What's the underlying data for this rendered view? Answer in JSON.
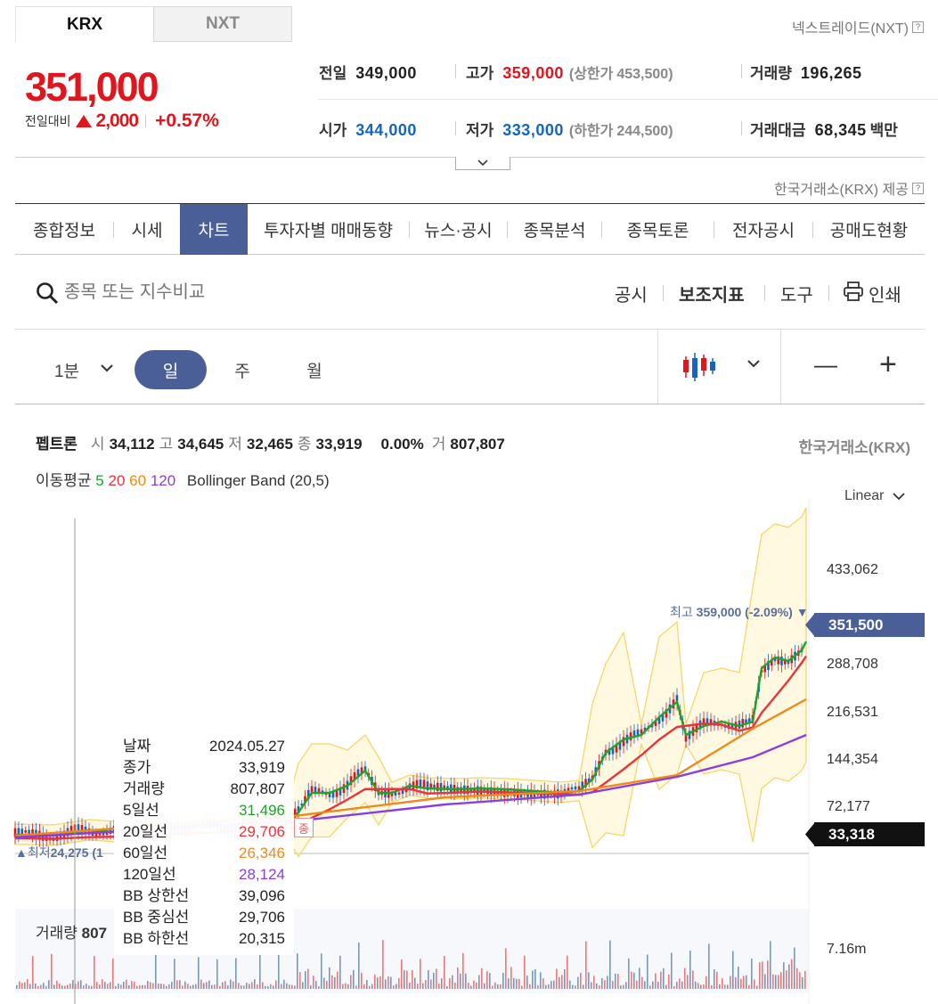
{
  "market_tabs": [
    "KRX",
    "NXT"
  ],
  "nxt_link": "넥스트레이드(NXT)",
  "krx_link": "한국거래소(KRX) 제공",
  "q_icon": "?",
  "price": "351,000",
  "change_label": "전일대비",
  "change_value": "2,000",
  "change_pct": "+0.57%",
  "stats": {
    "prev_k": "전일",
    "prev_v": "349,000",
    "high_k": "고가",
    "high_v": "359,000",
    "upper_k": "(상한가",
    "upper_v": "453,500)",
    "vol_k": "거래량",
    "vol_v": "196,265",
    "open_k": "시가",
    "open_v": "344,000",
    "low_k": "저가",
    "low_v": "333,000",
    "lower_k": "(하한가",
    "lower_v": "244,500)",
    "amt_k": "거래대금",
    "amt_v": "68,345",
    "amt_u": "백만"
  },
  "nav": [
    "종합정보",
    "시세",
    "차트",
    "투자자별 매매동향",
    "뉴스·공시",
    "종목분석",
    "종목토론",
    "전자공시",
    "공매도현황"
  ],
  "search_placeholder": "종목 또는 지수비교",
  "tools": {
    "notice": "공시",
    "indicator": "보조지표",
    "tool": "도구",
    "print": "인쇄"
  },
  "periods": {
    "minute": "1분",
    "day": "일",
    "week": "주",
    "month": "월"
  },
  "zoom": {
    "minus": "—",
    "plus": "+"
  },
  "info": {
    "name": "펩트론",
    "o_k": "시",
    "o": "34,112",
    "h_k": "고",
    "h": "34,645",
    "l_k": "저",
    "l": "32,465",
    "c_k": "종",
    "c": "33,919",
    "pct": "0.00%",
    "v_k": "거",
    "v": "807,807",
    "src": "한국거래소(KRX)"
  },
  "ma": {
    "label": "이동평균",
    "m5": "5",
    "m20": "20",
    "m60": "60",
    "m120": "120",
    "bb": "Bollinger Band (20,5)"
  },
  "scale": "Linear",
  "y_ticks": [
    "433,062",
    "288,708",
    "216,531",
    "144,354",
    "72,177"
  ],
  "vol_tick": "7.16m",
  "current_tag": "351,500",
  "cursor_tag": "33,318",
  "high_marker_k": "최고",
  "high_marker_v": "359,000 (-2.09%)",
  "low_marker_k": "최저",
  "low_marker_v": "24,275 (1",
  "close_badge": "종",
  "vol_label": "거래량",
  "vol_value": "807",
  "tooltip": [
    {
      "k": "날짜",
      "v": "2024.05.27",
      "c": "#222"
    },
    {
      "k": "종가",
      "v": "33,919",
      "c": "#222"
    },
    {
      "k": "거래량",
      "v": "807,807",
      "c": "#222"
    },
    {
      "k": "5일선",
      "v": "31,496",
      "c": "#22a22a"
    },
    {
      "k": "20일선",
      "v": "29,706",
      "c": "#e8343c"
    },
    {
      "k": "60일선",
      "v": "26,346",
      "c": "#ee8a1c"
    },
    {
      "k": "120일선",
      "v": "28,124",
      "c": "#8a3ee0"
    },
    {
      "k": "BB 상한선",
      "v": "39,096",
      "c": "#222"
    },
    {
      "k": "BB 중심선",
      "v": "29,706",
      "c": "#222"
    },
    {
      "k": "BB 하한선",
      "v": "20,315",
      "c": "#222"
    }
  ],
  "colors": {
    "up": "#e0161f",
    "down": "#1565c0",
    "accent": "#4a5f98",
    "ma5": "#22a22a",
    "ma20": "#e8343c",
    "ma60": "#ee8a1c",
    "ma120": "#8a3ee0",
    "bb": "#f5d66a"
  }
}
